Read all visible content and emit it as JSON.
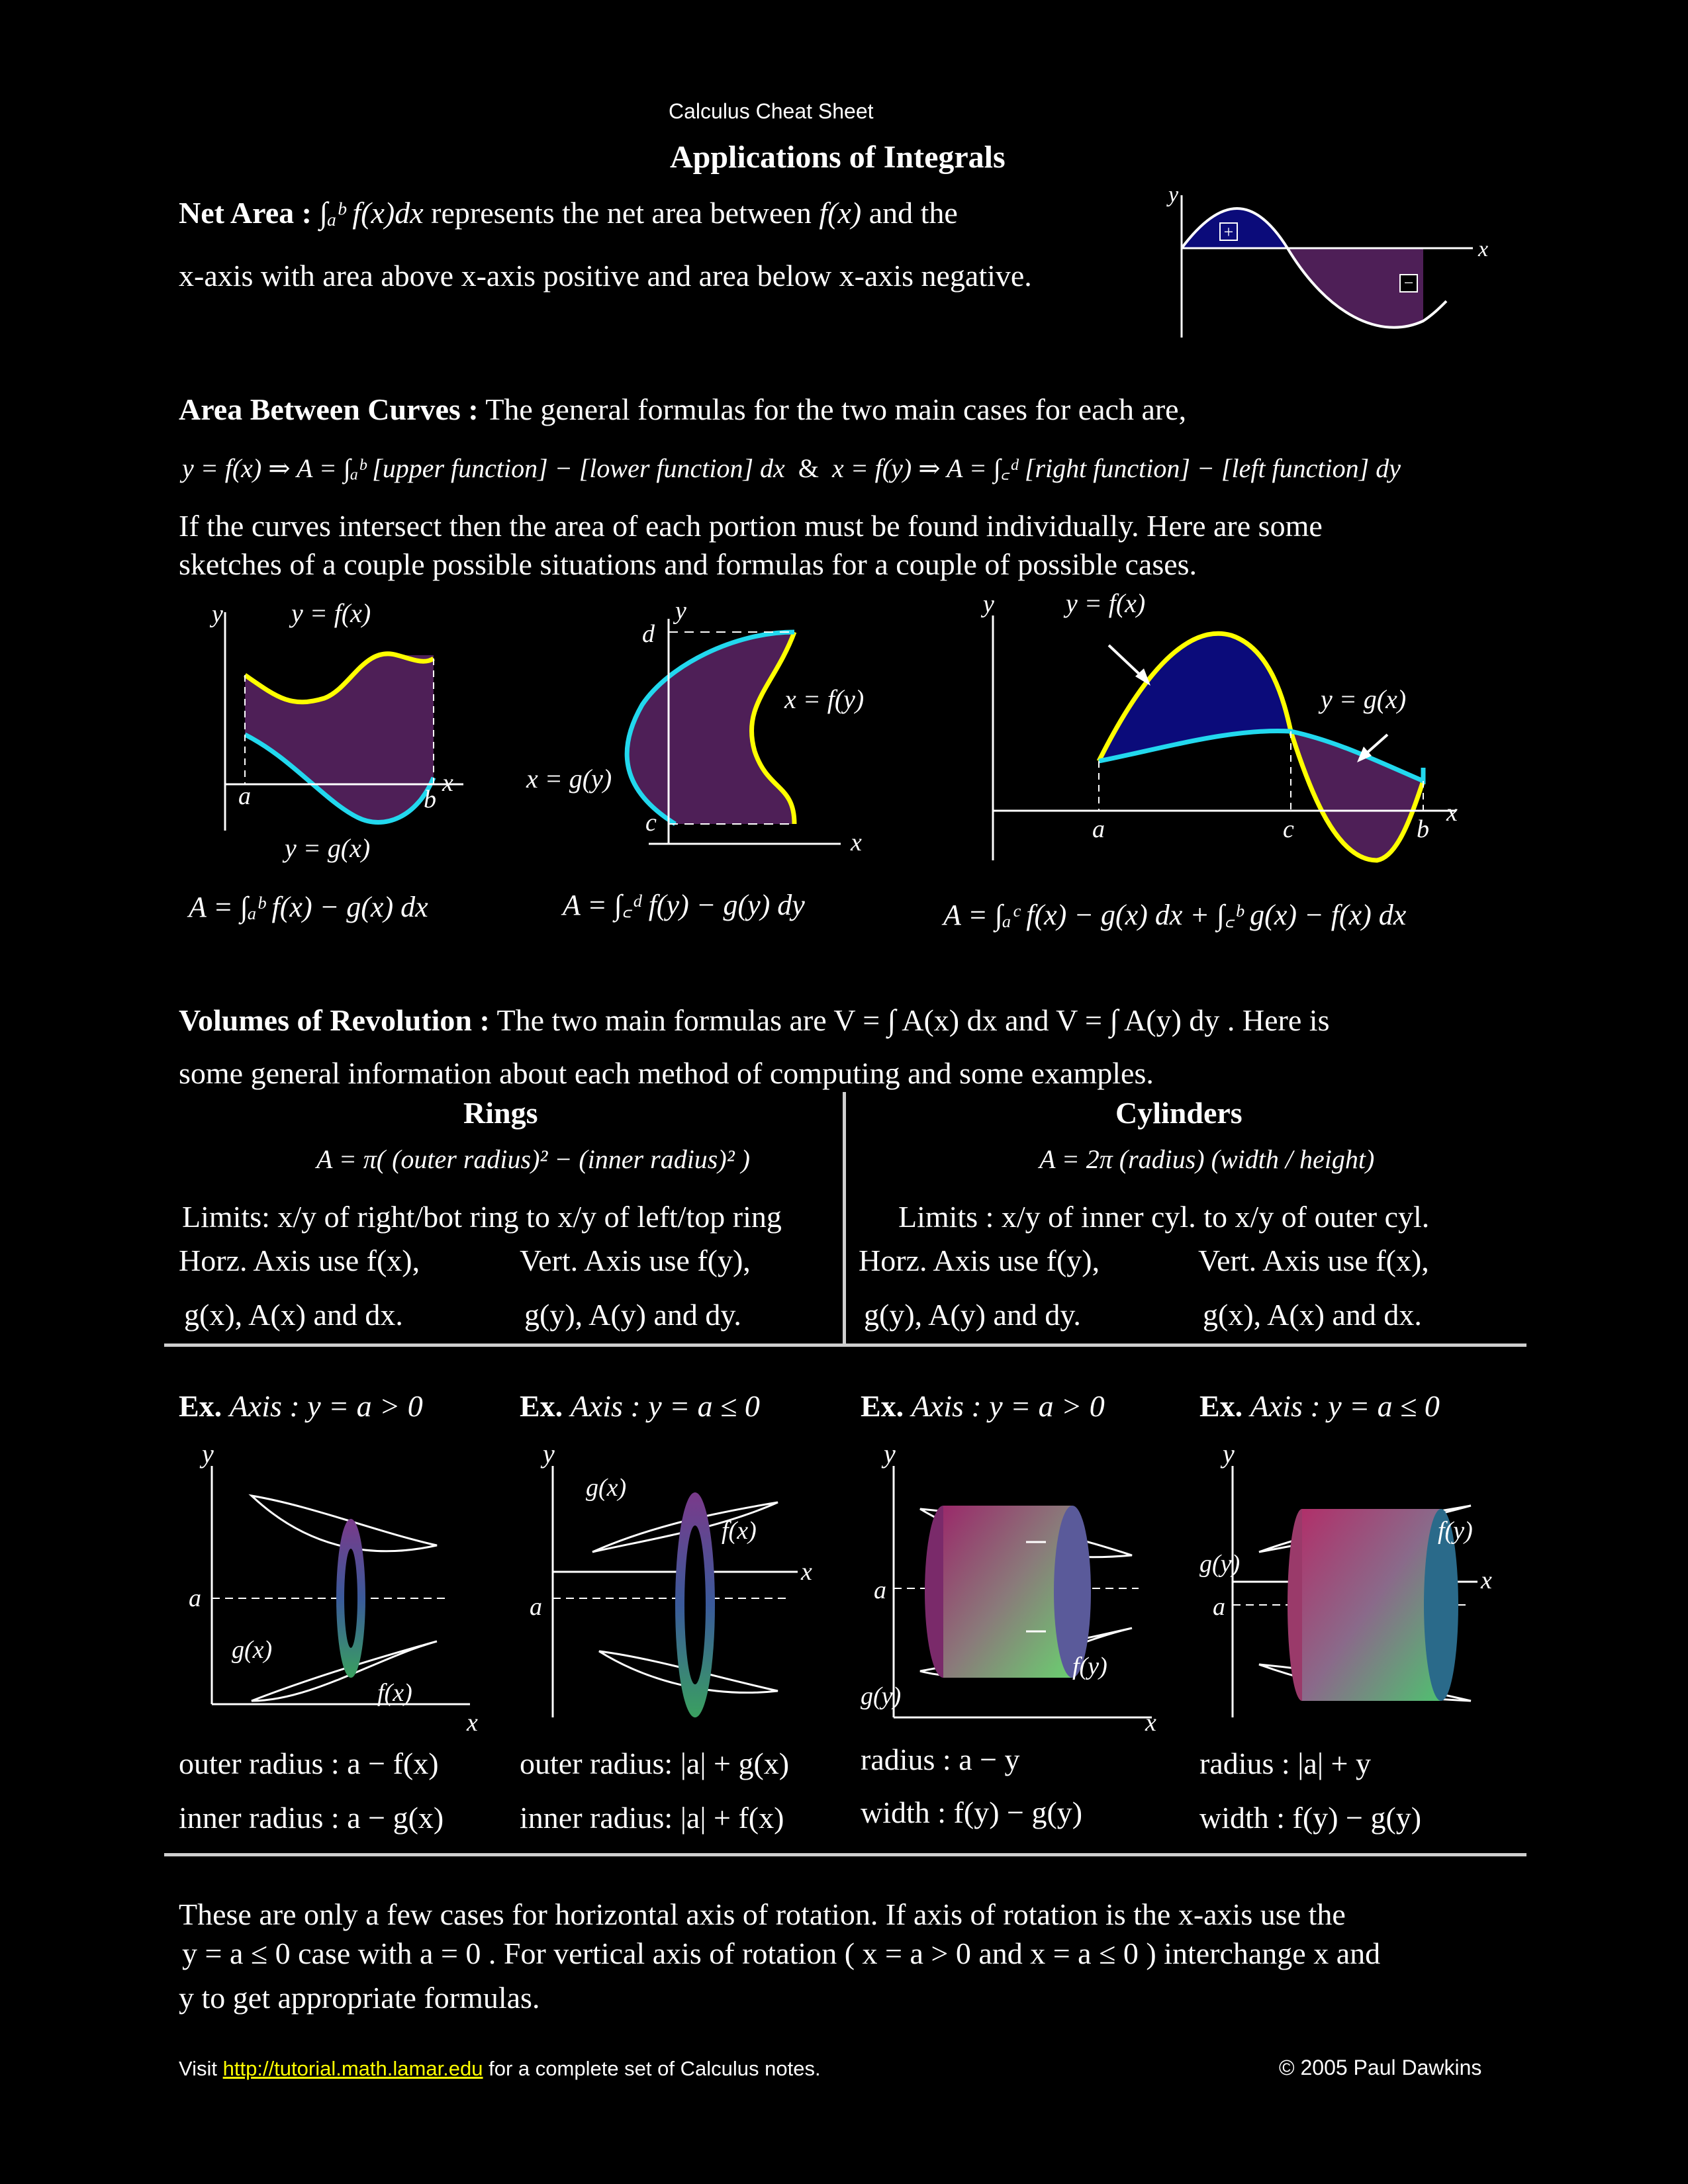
{
  "header": {
    "sheet_title": "Calculus Cheat Sheet",
    "page_title": "Applications of Integrals"
  },
  "net_area": {
    "label": "Net Area :",
    "formula": "∫ₐᵇ f(x)dx",
    "text1": "represents the net area between",
    "fx": "f(x)",
    "text2": "and the",
    "line2": "x-axis with area above x-axis positive and area below x-axis negative.",
    "fig": {
      "y": "y",
      "x": "x",
      "plus": "+",
      "minus": "−"
    }
  },
  "area_between": {
    "label": "Area Between Curves :",
    "intro": "The general formulas for the two main cases for each are,",
    "formula_left": "y = f(x)  ⇒  A = ∫ₐᵇ [upper function] − [lower function] dx",
    "amp": "&",
    "formula_right": "x = f(y)  ⇒  A = ∫꜀ᵈ [right function] − [left function] dy",
    "para1": "If the curves intersect then the area of each portion must be found individually.  Here are some",
    "para2": "sketches of a couple possible situations and formulas for a couple of possible cases.",
    "fig1": {
      "y": "y",
      "fx": "y = f(x)",
      "gx": "y = g(x)",
      "a": "a",
      "b": "b",
      "x": "x",
      "formula": "A = ∫ₐᵇ f(x) − g(x) dx"
    },
    "fig2": {
      "y": "y",
      "d": "d",
      "c": "c",
      "x": "x",
      "fy": "x = f(y)",
      "gy": "x = g(y)",
      "formula": "A = ∫꜀ᵈ f(y) − g(y) dy"
    },
    "fig3": {
      "y": "y",
      "fx": "y = f(x)",
      "gx": "y = g(x)",
      "a": "a",
      "c": "c",
      "b": "b",
      "x": "x",
      "formula": "A = ∫ₐᶜ f(x) − g(x) dx + ∫꜀ᵇ g(x) − f(x) dx"
    }
  },
  "volumes": {
    "label": "Volumes of Revolution :",
    "text1": "The two main formulas are V = ∫ A(x) dx  and  V = ∫ A(y) dy .  Here is",
    "text2": "some general information about each method of computing and some examples.",
    "rings": {
      "title": "Rings",
      "formula": "A = π( (outer radius)² − (inner radius)² )",
      "limits": "Limits: x/y of right/bot ring to x/y of left/top ring",
      "horz1": "Horz. Axis use f(x),",
      "horz2": "g(x), A(x) and dx.",
      "vert1": "Vert. Axis use f(y),",
      "vert2": "g(y), A(y) and dy."
    },
    "cylinders": {
      "title": "Cylinders",
      "formula": "A = 2π (radius) (width / height)",
      "limits": "Limits : x/y of inner cyl. to x/y of outer cyl.",
      "horz1": "Horz. Axis use f(y),",
      "horz2": "g(y), A(y) and dy.",
      "vert1": "Vert. Axis use f(x),",
      "vert2": "g(x), A(x) and dx."
    }
  },
  "examples": [
    {
      "label": "Ex.",
      "axis": "Axis :  y = a > 0",
      "line1": "outer radius : a − f(x)",
      "line2": "inner radius :  a − g(x)",
      "fig": {
        "y": "y",
        "a": "a",
        "x": "x",
        "g": "g(x)",
        "f": "f(x)"
      }
    },
    {
      "label": "Ex.",
      "axis": "Axis :  y = a ≤ 0",
      "line1": "outer radius: |a| + g(x)",
      "line2": "inner radius: |a| + f(x)",
      "fig": {
        "y": "y",
        "a": "a",
        "x": "x",
        "g": "g(x)",
        "f": "f(x)"
      }
    },
    {
      "label": "Ex.",
      "axis": "Axis :  y = a > 0",
      "line1": "radius : a − y",
      "line2": "width :  f(y) − g(y)",
      "fig": {
        "y": "y",
        "a": "a",
        "x": "x",
        "g": "g(y)",
        "f": "f(y)"
      }
    },
    {
      "label": "Ex.",
      "axis": "Axis :  y = a ≤ 0",
      "line1": "radius : |a| + y",
      "line2": "width :  f(y) − g(y)",
      "fig": {
        "y": "y",
        "a": "a",
        "x": "x",
        "g": "g(y)",
        "f": "f(y)"
      }
    }
  ],
  "closing": {
    "line1": "These are only a few cases for horizontal axis of rotation.  If axis of rotation is the x-axis use the",
    "line2": "y = a ≤ 0  case with  a = 0 .  For vertical axis of rotation ( x = a > 0  and  x = a ≤ 0 ) interchange x and",
    "line3": "y to get appropriate formulas."
  },
  "footer": {
    "visit": "Visit",
    "link": "http://tutorial.math.lamar.edu",
    "rest": "for a complete set of Calculus notes.",
    "copyright": "© 2005 Paul Dawkins"
  },
  "colors": {
    "purple": "#4e1f57",
    "navy": "#0b0b7a",
    "yellow": "#ffff00",
    "cyan": "#22d8ee",
    "rule": "#cfcfcf"
  }
}
